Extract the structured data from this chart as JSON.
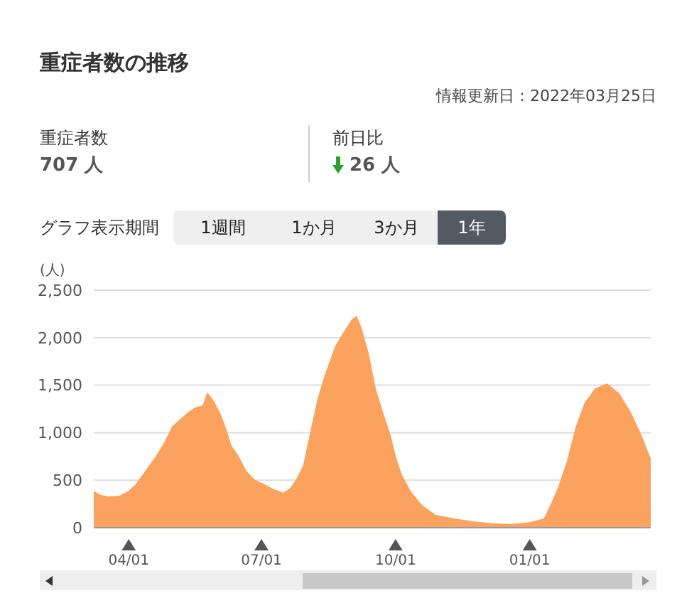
{
  "chart_data": {
    "type": "area",
    "title": "重症者数の推移",
    "subtitle": "情報更新日：2022年03月25日",
    "ylabel": "(人)",
    "annotations": [
      "重症者数",
      "707 人",
      "前日比",
      "26 人",
      "グラフ表示期間",
      "1週間",
      "1か月",
      "3か月",
      "1年"
    ],
    "x": [
      "2021-03-08",
      "2021-03-12",
      "2021-03-18",
      "2021-03-26",
      "2021-04-01",
      "2021-04-06",
      "2021-04-13",
      "2021-04-20",
      "2021-04-26",
      "2021-05-01",
      "2021-05-06",
      "2021-05-12",
      "2021-05-17",
      "2021-05-22",
      "2021-05-25",
      "2021-05-29",
      "2021-06-03",
      "2021-06-07",
      "2021-06-10",
      "2021-06-15",
      "2021-06-20",
      "2021-06-26",
      "2021-07-03",
      "2021-07-09",
      "2021-07-16",
      "2021-07-21",
      "2021-07-25",
      "2021-07-30",
      "2021-08-04",
      "2021-08-09",
      "2021-08-14",
      "2021-08-21",
      "2021-08-27",
      "2021-09-01",
      "2021-09-04",
      "2021-09-07",
      "2021-09-12",
      "2021-09-17",
      "2021-09-22",
      "2021-09-27",
      "2021-10-01",
      "2021-10-05",
      "2021-10-11",
      "2021-10-19",
      "2021-10-28",
      "2021-11-10",
      "2021-11-23",
      "2021-12-06",
      "2021-12-19",
      "2022-01-01",
      "2022-01-11",
      "2022-01-16",
      "2022-01-21",
      "2022-01-27",
      "2022-02-02",
      "2022-02-08",
      "2022-02-15",
      "2022-02-23",
      "2022-03-03",
      "2022-03-11",
      "2022-03-18",
      "2022-03-25"
    ],
    "series": [
      {
        "color": "#fba35e",
        "values": [
          380,
          340,
          320,
          330,
          380,
          450,
          600,
          750,
          900,
          1060,
          1130,
          1210,
          1260,
          1280,
          1410,
          1330,
          1180,
          1010,
          860,
          750,
          600,
          500,
          450,
          400,
          360,
          410,
          500,
          650,
          1010,
          1360,
          1610,
          1910,
          2060,
          2180,
          2220,
          2110,
          1840,
          1460,
          1210,
          980,
          730,
          550,
          380,
          230,
          130,
          90,
          60,
          40,
          30,
          50,
          90,
          250,
          430,
          700,
          1060,
          1310,
          1460,
          1510,
          1410,
          1210,
          980,
          707
        ]
      }
    ],
    "xlim": [
      "2021-03-08",
      "2022-03-25"
    ],
    "xticks": [
      {
        "value": "2021-04-01",
        "label": "04/01"
      },
      {
        "value": "2021-07-01",
        "label": "07/01"
      },
      {
        "value": "2021-10-01",
        "label": "10/01"
      },
      {
        "value": "2022-01-01",
        "label": "01/01"
      }
    ],
    "ylim": [
      0,
      2500
    ],
    "yticks": [
      0,
      {
        "value": 500,
        "label": "500"
      },
      {
        "value": 1000,
        "label": "1,000"
      },
      {
        "value": 1500,
        "label": "1,500"
      },
      {
        "value": 2000,
        "label": "2,000"
      },
      {
        "value": 2500,
        "label": "2,500"
      }
    ],
    "grid": "y",
    "legend": false
  }
}
